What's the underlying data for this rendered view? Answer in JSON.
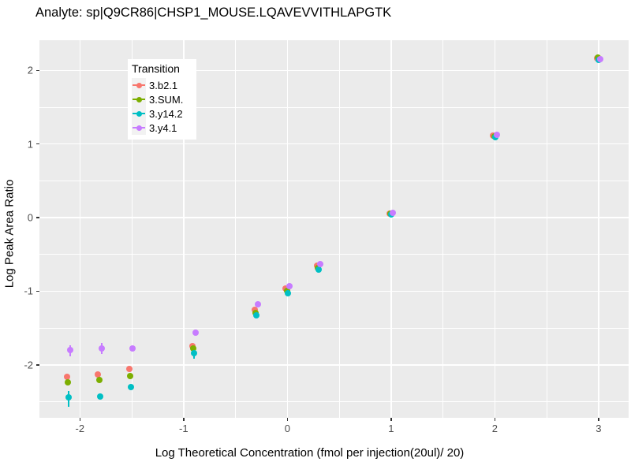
{
  "title": "Analyte: sp|Q9CR86|CHSP1_MOUSE.LQAVEVVITHLAPGTK",
  "axes": {
    "x_label": "Log Theoretical Concentration (fmol per injection(20ul)/ 20)",
    "y_label": "Log Peak Area Ratio",
    "x_ticks": [
      {
        "value": -2,
        "label": "-2"
      },
      {
        "value": -1,
        "label": "-1"
      },
      {
        "value": 0,
        "label": "0"
      },
      {
        "value": 1,
        "label": "1"
      },
      {
        "value": 2,
        "label": "2"
      },
      {
        "value": 3,
        "label": "3"
      }
    ],
    "y_ticks": [
      {
        "value": 2,
        "label": "2"
      },
      {
        "value": 1,
        "label": "1"
      },
      {
        "value": 0,
        "label": "0"
      },
      {
        "value": -1,
        "label": "-1"
      },
      {
        "value": -2,
        "label": "-2"
      }
    ]
  },
  "legend": {
    "title": "Transition",
    "items": [
      {
        "label": "3.b2.1",
        "color": "#F8766D"
      },
      {
        "label": "3.SUM.",
        "color": "#7CAE00"
      },
      {
        "label": "3.y14.2",
        "color": "#00BFC4"
      },
      {
        "label": "3.y4.1",
        "color": "#C77CFF"
      }
    ]
  },
  "chart_data": {
    "type": "scatter",
    "title": "Analyte: sp|Q9CR86|CHSP1_MOUSE.LQAVEVVITHLAPGTK",
    "xlabel": "Log Theoretical Concentration (fmol per injection(20ul)/ 20)",
    "ylabel": "Log Peak Area Ratio",
    "xlim": [
      -2.39,
      3.29
    ],
    "ylim": [
      -2.72,
      2.41
    ],
    "grid": "on",
    "legend_position": "inside-top-left",
    "x": [
      -2.11,
      -1.81,
      -1.51,
      -0.9,
      -0.3,
      0,
      0.3,
      1,
      2,
      3
    ],
    "series": [
      {
        "name": "3.b2.1",
        "color": "#F8766D",
        "dx": -2,
        "values": [
          -2.16,
          -2.13,
          -2.06,
          -1.75,
          -1.25,
          -0.96,
          -0.65,
          0.05,
          1.11,
          2.16
        ]
      },
      {
        "name": "3.SUM.",
        "color": "#7CAE00",
        "dx": -0.5,
        "values": [
          -2.24,
          -2.21,
          -2.15,
          -1.78,
          -1.3,
          -1.0,
          -0.69,
          0.05,
          1.1,
          2.17
        ]
      },
      {
        "name": "3.y14.2",
        "color": "#00BFC4",
        "dx": 0.5,
        "values": [
          -2.44,
          -2.43,
          -2.3,
          -1.84,
          -1.33,
          -1.03,
          -0.71,
          0.04,
          1.09,
          2.14
        ]
      },
      {
        "name": "3.y4.1",
        "color": "#C77CFF",
        "dx": 2.5,
        "values": [
          -1.8,
          -1.78,
          -1.78,
          -1.56,
          -1.18,
          -0.93,
          -0.63,
          0.06,
          1.12,
          2.15
        ]
      }
    ],
    "error_bars": [
      {
        "series": "3.y4.1",
        "x": -2.11,
        "lo": -1.88,
        "hi": -1.73
      },
      {
        "series": "3.y14.2",
        "x": -2.11,
        "lo": -2.57,
        "hi": -2.36
      },
      {
        "series": "3.y4.1",
        "x": -1.81,
        "lo": -1.85,
        "hi": -1.7
      },
      {
        "series": "3.y14.2",
        "x": -0.9,
        "lo": -1.92,
        "hi": -1.8
      }
    ],
    "x_major": [
      -2,
      -1,
      0,
      1,
      2,
      3
    ],
    "x_minor": [
      -1.5,
      -0.5,
      0.5,
      1.5,
      2.5
    ],
    "y_major": [
      -2,
      -1,
      0,
      1,
      2
    ],
    "y_minor": [
      -2.5,
      -1.5,
      -0.5,
      0.5,
      1.5
    ]
  },
  "colors": {
    "panel_background": "#EBEBEB",
    "gridline": "#FFFFFF",
    "tick_text": "#4D4D4D",
    "tick_mark": "#333333",
    "legend_key_background": "#F2F2F2",
    "figure_background": "#FFFFFF"
  }
}
